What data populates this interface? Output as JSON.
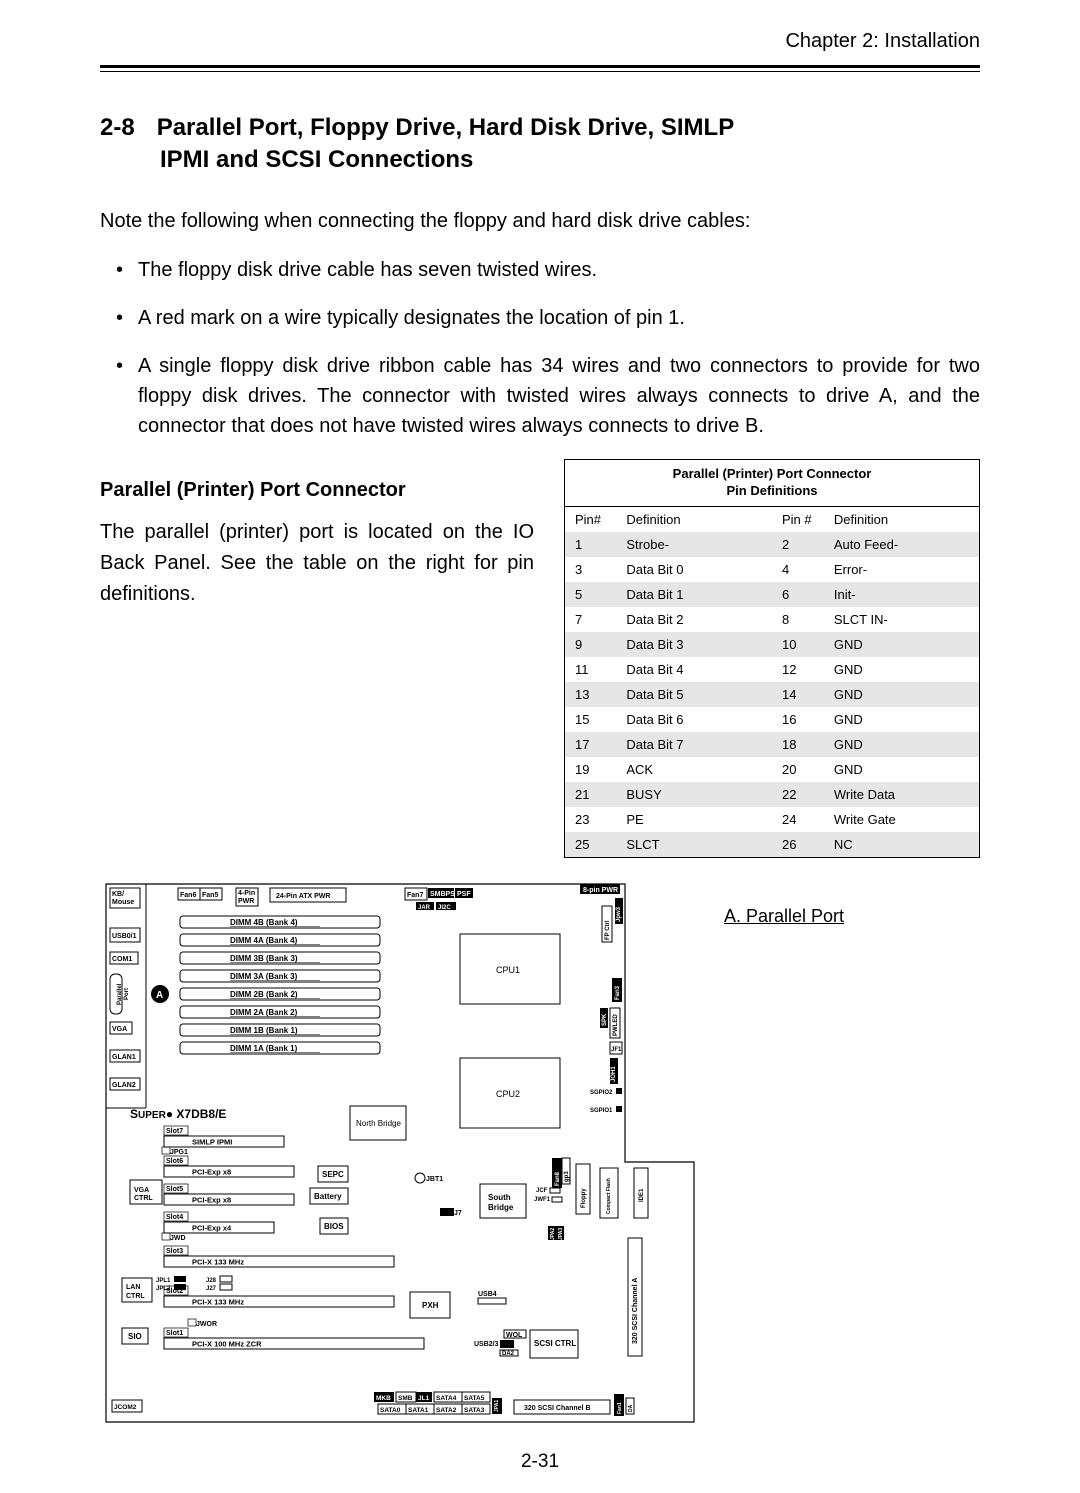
{
  "header": {
    "chapter": "Chapter 2: Installation"
  },
  "section": {
    "number": "2-8",
    "title_line1": "Parallel Port, Floppy Drive, Hard Disk Drive, SIMLP",
    "title_line2": "IPMI and SCSI Connections"
  },
  "intro_note": "Note the following when connecting the floppy and hard disk drive cables:",
  "bullets": [
    "The floppy disk drive cable has seven twisted wires.",
    "A red mark on a wire typically designates the location of pin 1.",
    "A single floppy disk drive ribbon cable has 34 wires and two connectors to provide for two floppy disk drives.  The connector with twisted wires always connects to drive A, and the connector that does not have twisted wires always connects to drive B."
  ],
  "sub_heading": "Parallel (Printer) Port Connector",
  "sub_body": "The parallel (printer) port is located on the IO Back Panel.  See the table on the right for pin definitions.",
  "pin_table": {
    "caption_line1": "Parallel (Printer) Port Connector",
    "caption_line2": "Pin Definitions",
    "headers": [
      "Pin#",
      "Definition",
      "Pin #",
      "Definition"
    ],
    "rows": [
      {
        "shade": true,
        "cells": [
          "1",
          "Strobe-",
          "2",
          "Auto Feed-"
        ]
      },
      {
        "shade": false,
        "cells": [
          "3",
          "Data Bit 0",
          "4",
          "Error-"
        ]
      },
      {
        "shade": true,
        "cells": [
          "5",
          "Data Bit 1",
          "6",
          "Init-"
        ]
      },
      {
        "shade": false,
        "cells": [
          "7",
          "Data Bit 2",
          "8",
          "SLCT IN-"
        ]
      },
      {
        "shade": true,
        "cells": [
          "9",
          "Data Bit 3",
          "10",
          "GND"
        ]
      },
      {
        "shade": false,
        "cells": [
          "11",
          "Data Bit 4",
          "12",
          "GND"
        ]
      },
      {
        "shade": true,
        "cells": [
          "13",
          "Data Bit 5",
          "14",
          "GND"
        ]
      },
      {
        "shade": false,
        "cells": [
          "15",
          "Data Bit 6",
          "16",
          "GND"
        ]
      },
      {
        "shade": true,
        "cells": [
          "17",
          "Data Bit 7",
          "18",
          "GND"
        ]
      },
      {
        "shade": false,
        "cells": [
          "19",
          "ACK",
          "20",
          "GND"
        ]
      },
      {
        "shade": true,
        "cells": [
          "21",
          "BUSY",
          "22",
          "Write Data"
        ]
      },
      {
        "shade": false,
        "cells": [
          "23",
          "PE",
          "24",
          "Write Gate"
        ]
      },
      {
        "shade": true,
        "cells": [
          "25",
          "SLCT",
          "26",
          "NC"
        ]
      }
    ]
  },
  "legend": {
    "a": "A. Parallel Port"
  },
  "page_number": "2-31",
  "board": {
    "model_prefix": "SUPER",
    "model": "X7DB8/E",
    "top_row": [
      "KB/\nMouse",
      "Fan6",
      "Fan5",
      "4-Pin\nPWR",
      "24-Pin ATX PWR",
      "Fan7",
      "SMBPS",
      "PSF",
      "8-pin PWR"
    ],
    "left_ports": [
      "USB0/1",
      "COM1",
      "Parallel\nPort",
      "VGA",
      "GLAN1",
      "GLAN2"
    ],
    "dimms": [
      "DIMM 4B (Bank 4)",
      "DIMM 4A (Bank 4)",
      "DIMM 3B (Bank 3)",
      "DIMM 3A (Bank 3)",
      "DIMM 2B (Bank 2)",
      "DIMM 2A (Bank 2)",
      "DIMM 1B (Bank 1)",
      "DIMM 1A (Bank 1)"
    ],
    "cpus": [
      "CPU1",
      "CPU2"
    ],
    "slots": [
      {
        "n": "Slot7",
        "label": "SIMLP IPMI"
      },
      {
        "n": "Slot6",
        "label": "PCI-Exp  x8"
      },
      {
        "n": "Slot5",
        "label": "PCI-Exp  x8"
      },
      {
        "n": "Slot4",
        "label": "PCI-Exp  x4"
      },
      {
        "n": "Slot3",
        "label": "PCI-X 133 MHz"
      },
      {
        "n": "Slot2",
        "label": "PCI-X 133 MHz"
      },
      {
        "n": "Slot1",
        "label": "PCI-X 100 MHz ZCR"
      }
    ],
    "chips": {
      "north": "North Bridge",
      "south": "South\nBridge",
      "pxh": "PXH",
      "bios": "BIOS",
      "sepc": "SEPC",
      "battery": "Battery",
      "scsi_ctrl": "SCSI CTRL",
      "sio": "SIO",
      "lan_ctrl": "LAN\nCTRL",
      "vga_ctrl": "VGA\nCTRL",
      "jbt1": "JBT1",
      "j7": "J7"
    },
    "jumpers": [
      "JPG1",
      "JWD",
      "JWOR",
      "JPL1",
      "JPL2",
      "J28",
      "J27",
      "JAR",
      "JI2C1",
      "JI2C2"
    ],
    "right_side": [
      "Jpw3",
      "FP Ctrl",
      "Fan3",
      "PWLED",
      "SPK",
      "JF1",
      "JOH1",
      "SGPIO2",
      "SGPIO1",
      "Fan8",
      "gp3",
      "Floppy",
      "Compact Flash",
      "IDE1",
      "JCF",
      "JWF1",
      "JPA2",
      "JPA3",
      "JPA1",
      "320 SCSI Channel A",
      "320 SCSI Channel B",
      "Fan1",
      "DA"
    ],
    "bottom": [
      "JCOM2",
      "MKB",
      "SMB",
      "JL1",
      "SATA4",
      "SATA5",
      "SATA0",
      "SATA1",
      "SATA2",
      "SATA3",
      "USB4",
      "USB2/3",
      "WOL",
      "DA2"
    ]
  }
}
